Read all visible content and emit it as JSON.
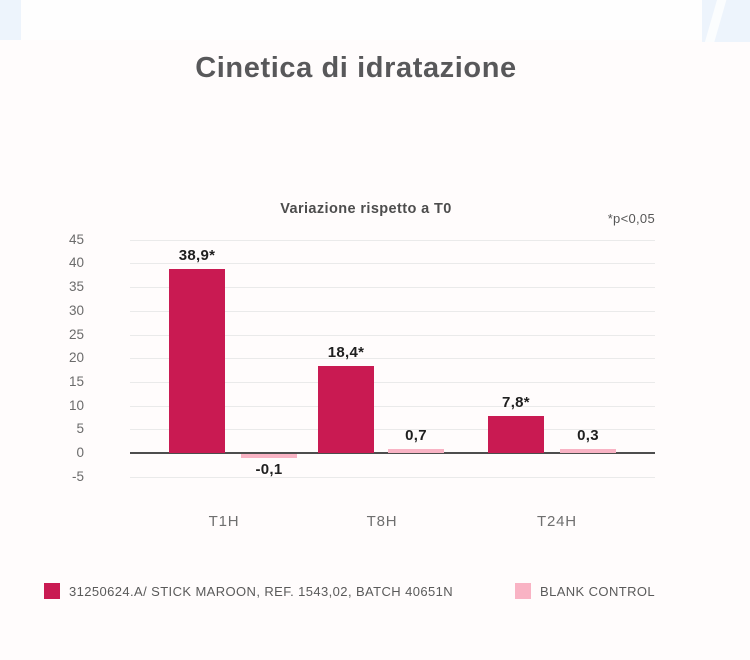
{
  "page": {
    "background": "#fffcfc",
    "banner_accent_color": "#edf4fc"
  },
  "title": "Cinetica di idratazione",
  "chart_data": {
    "type": "bar",
    "title": "Cinetica di idratazione",
    "subtitle": "Variazione rispetto a T0",
    "annotation": "*p<0,05",
    "categories": [
      "T1H",
      "T8H",
      "T24H"
    ],
    "series": [
      {
        "name": "31250624.A/ STICK MAROON, REF. 1543,02, BATCH 40651N",
        "color": "#c91a52",
        "values": [
          38.9,
          18.4,
          7.8
        ],
        "value_labels": [
          "38,9*",
          "18,4*",
          "7,8*"
        ]
      },
      {
        "name": "BLANK CONTROL",
        "color": "#f9b3c4",
        "values": [
          -0.1,
          0.7,
          0.3
        ],
        "value_labels": [
          "-0,1",
          "0,7",
          "0,3"
        ]
      }
    ],
    "y_ticks": [
      45,
      40,
      35,
      30,
      25,
      20,
      15,
      10,
      5,
      0,
      -5
    ],
    "ylim": [
      -5,
      45
    ],
    "grid": true,
    "legend_position": "bottom",
    "zero_line": true
  }
}
